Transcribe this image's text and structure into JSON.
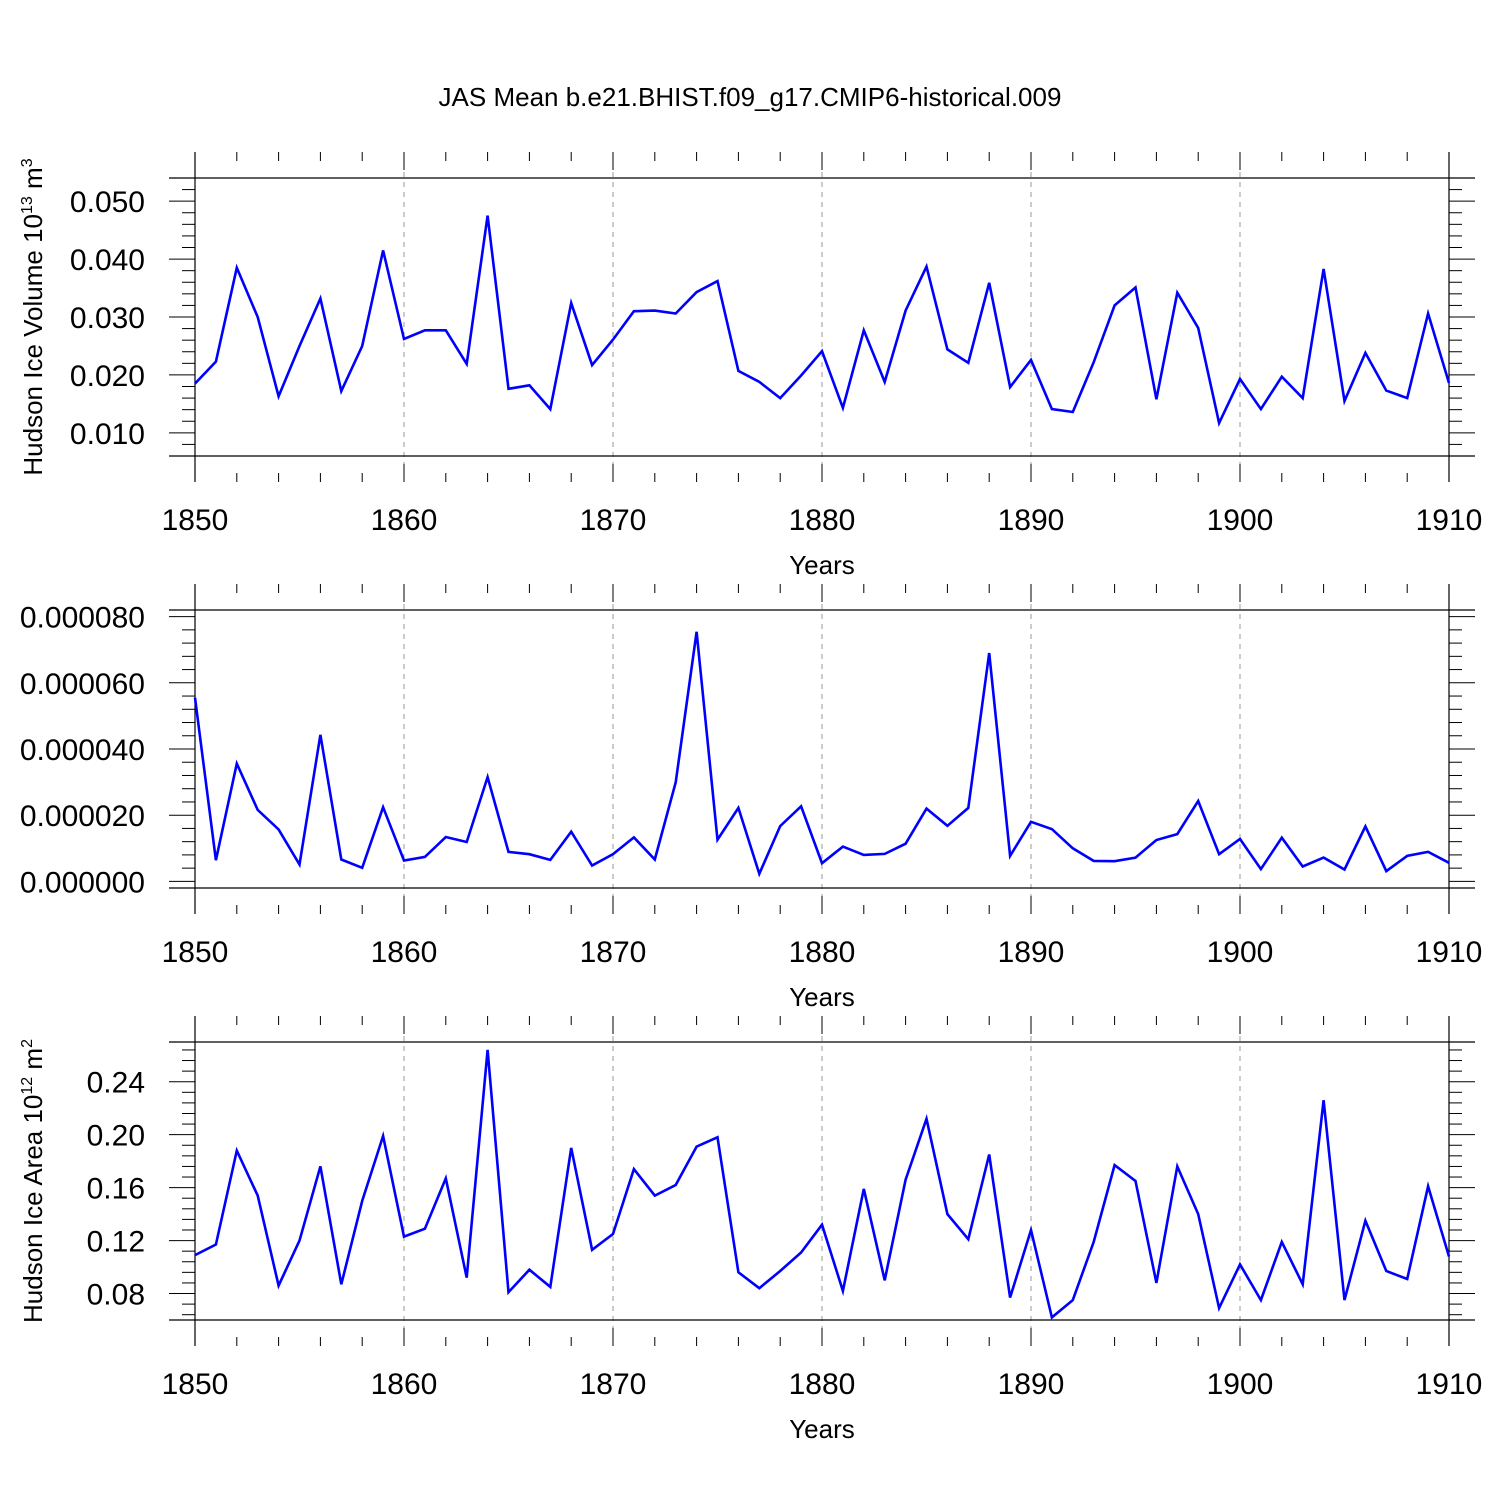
{
  "figure_title": "JAS Mean b.e21.BHIST.f09_g17.CMIP6-historical.009",
  "colors": {
    "line": "#0000ff",
    "axes": "#000000",
    "grid": "#999999"
  },
  "chart_data": [
    {
      "type": "line",
      "title": "JAS Mean b.e21.BHIST.f09_g17.CMIP6-historical.009",
      "xlabel": "Years",
      "ylabel": "Hudson Ice Volume 10",
      "ylabel_exponent": "13",
      "ylabel_unit": " m",
      "ylabel_unit_exponent": "3",
      "xlim": [
        1850,
        1910
      ],
      "ylim": [
        0.006,
        0.054
      ],
      "xticks": [
        1850,
        1860,
        1870,
        1880,
        1890,
        1900,
        1910
      ],
      "xtick_labels": [
        "1850",
        "1860",
        "1870",
        "1880",
        "1890",
        "1900",
        "1910"
      ],
      "yticks": [
        0.01,
        0.02,
        0.03,
        0.04,
        0.05
      ],
      "ytick_labels": [
        "0.010",
        "0.020",
        "0.030",
        "0.040",
        "0.050"
      ],
      "grid": "vertical dashed",
      "x": [
        1850,
        1851,
        1852,
        1853,
        1854,
        1855,
        1856,
        1857,
        1858,
        1859,
        1860,
        1861,
        1862,
        1863,
        1864,
        1865,
        1866,
        1867,
        1868,
        1869,
        1870,
        1871,
        1872,
        1873,
        1874,
        1875,
        1876,
        1877,
        1878,
        1879,
        1880,
        1881,
        1882,
        1883,
        1884,
        1885,
        1886,
        1887,
        1888,
        1889,
        1890,
        1891,
        1892,
        1893,
        1894,
        1895,
        1896,
        1897,
        1898,
        1899,
        1900,
        1901,
        1902,
        1903,
        1904,
        1905,
        1906,
        1907,
        1908,
        1909,
        1910
      ],
      "values": [
        0.0185,
        0.0223,
        0.0385,
        0.03,
        0.0163,
        0.025,
        0.0332,
        0.0172,
        0.025,
        0.0415,
        0.0262,
        0.0277,
        0.0277,
        0.0219,
        0.0475,
        0.0176,
        0.0182,
        0.0141,
        0.0324,
        0.0217,
        0.0261,
        0.031,
        0.0311,
        0.0306,
        0.0343,
        0.0362,
        0.0207,
        0.0188,
        0.016,
        0.0199,
        0.0241,
        0.0143,
        0.0277,
        0.0188,
        0.0311,
        0.0387,
        0.0244,
        0.0221,
        0.0359,
        0.0179,
        0.0226,
        0.0141,
        0.0136,
        0.0222,
        0.032,
        0.0351,
        0.0158,
        0.0342,
        0.0281,
        0.0117,
        0.0193,
        0.0141,
        0.0197,
        0.016,
        0.0383,
        0.0155,
        0.0238,
        0.0173,
        0.016,
        0.0306,
        0.0186
      ]
    },
    {
      "type": "line",
      "xlabel": "Years",
      "ylabel": "",
      "xlim": [
        1850,
        1910
      ],
      "ylim": [
        -2e-06,
        8.2e-05
      ],
      "xticks": [
        1850,
        1860,
        1870,
        1880,
        1890,
        1900,
        1910
      ],
      "xtick_labels": [
        "1850",
        "1860",
        "1870",
        "1880",
        "1890",
        "1900",
        "1910"
      ],
      "yticks": [
        0.0,
        2e-05,
        4e-05,
        6e-05,
        8e-05
      ],
      "ytick_labels": [
        "0.000000",
        "0.000020",
        "0.000040",
        "0.000060",
        "0.000080"
      ],
      "grid": "vertical dashed",
      "x": [
        1850,
        1851,
        1852,
        1853,
        1854,
        1855,
        1856,
        1857,
        1858,
        1859,
        1860,
        1861,
        1862,
        1863,
        1864,
        1865,
        1866,
        1867,
        1868,
        1869,
        1870,
        1871,
        1872,
        1873,
        1874,
        1875,
        1876,
        1877,
        1878,
        1879,
        1880,
        1881,
        1882,
        1883,
        1884,
        1885,
        1886,
        1887,
        1888,
        1889,
        1890,
        1891,
        1892,
        1893,
        1894,
        1895,
        1896,
        1897,
        1898,
        1899,
        1900,
        1901,
        1902,
        1903,
        1904,
        1905,
        1906,
        1907,
        1908,
        1909,
        1910
      ],
      "values": [
        5.55e-05,
        6.4e-06,
        3.56e-05,
        2.16e-05,
        1.57e-05,
        5.1e-06,
        4.43e-05,
        6.6e-06,
        4.1e-06,
        2.24e-05,
        6.3e-06,
        7.4e-06,
        1.34e-05,
        1.19e-05,
        3.15e-05,
        8.9e-06,
        8.2e-06,
        6.5e-06,
        1.5e-05,
        4.8e-06,
        8.2e-06,
        1.33e-05,
        6.6e-06,
        2.99e-05,
        7.54e-05,
        1.26e-05,
        2.22e-05,
        2.3e-06,
        1.67e-05,
        2.27e-05,
        5.5e-06,
        1.05e-05,
        8e-06,
        8.3e-06,
        1.14e-05,
        2.2e-05,
        1.68e-05,
        2.22e-05,
        6.9e-05,
        7.7e-06,
        1.8e-05,
        1.58e-05,
        1e-05,
        6.2e-06,
        6.1e-06,
        7.2e-06,
        1.25e-05,
        1.43e-05,
        2.43e-05,
        8.2e-06,
        1.28e-05,
        3.7e-06,
        1.32e-05,
        4.5e-06,
        7.2e-06,
        3.6e-06,
        1.66e-05,
        3.1e-06,
        7.7e-06,
        8.9e-06,
        5.6e-06
      ]
    },
    {
      "type": "line",
      "xlabel": "Years",
      "ylabel": "Hudson Ice Area 10",
      "ylabel_exponent": "12",
      "ylabel_unit": " m",
      "ylabel_unit_exponent": "2",
      "xlim": [
        1850,
        1910
      ],
      "ylim": [
        0.06,
        0.27
      ],
      "xticks": [
        1850,
        1860,
        1870,
        1880,
        1890,
        1900,
        1910
      ],
      "xtick_labels": [
        "1850",
        "1860",
        "1870",
        "1880",
        "1890",
        "1900",
        "1910"
      ],
      "yticks": [
        0.08,
        0.12,
        0.16,
        0.2,
        0.24
      ],
      "ytick_labels": [
        "0.08",
        "0.12",
        "0.16",
        "0.20",
        "0.24"
      ],
      "grid": "vertical dashed",
      "x": [
        1850,
        1851,
        1852,
        1853,
        1854,
        1855,
        1856,
        1857,
        1858,
        1859,
        1860,
        1861,
        1862,
        1863,
        1864,
        1865,
        1866,
        1867,
        1868,
        1869,
        1870,
        1871,
        1872,
        1873,
        1874,
        1875,
        1876,
        1877,
        1878,
        1879,
        1880,
        1881,
        1882,
        1883,
        1884,
        1885,
        1886,
        1887,
        1888,
        1889,
        1890,
        1891,
        1892,
        1893,
        1894,
        1895,
        1896,
        1897,
        1898,
        1899,
        1900,
        1901,
        1902,
        1903,
        1904,
        1905,
        1906,
        1907,
        1908,
        1909,
        1910
      ],
      "values": [
        0.109,
        0.117,
        0.188,
        0.154,
        0.086,
        0.12,
        0.176,
        0.087,
        0.15,
        0.199,
        0.123,
        0.129,
        0.167,
        0.092,
        0.264,
        0.081,
        0.098,
        0.085,
        0.19,
        0.113,
        0.125,
        0.174,
        0.154,
        0.162,
        0.191,
        0.198,
        0.096,
        0.084,
        0.097,
        0.111,
        0.132,
        0.082,
        0.159,
        0.09,
        0.166,
        0.212,
        0.14,
        0.121,
        0.185,
        0.077,
        0.128,
        0.062,
        0.075,
        0.119,
        0.177,
        0.165,
        0.088,
        0.176,
        0.14,
        0.069,
        0.102,
        0.075,
        0.119,
        0.087,
        0.226,
        0.075,
        0.135,
        0.097,
        0.091,
        0.161,
        0.108
      ]
    }
  ]
}
